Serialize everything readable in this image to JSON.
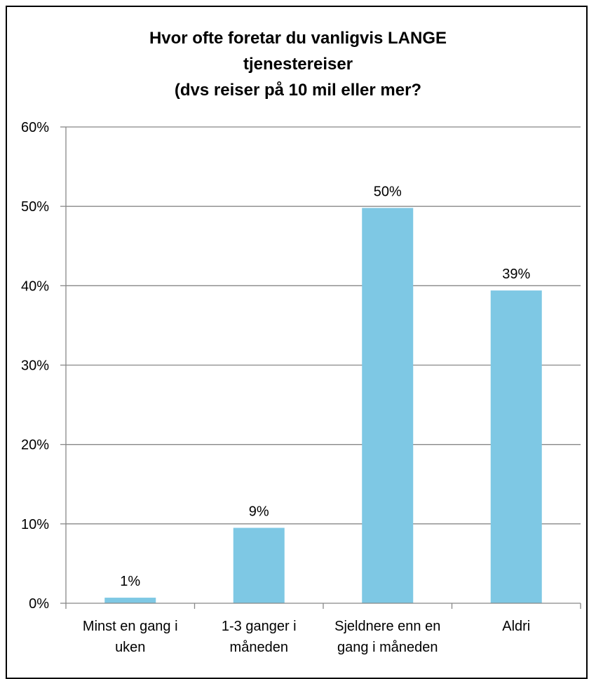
{
  "chart_data": {
    "type": "bar",
    "title_lines": [
      "Hvor ofte foretar du vanligvis LANGE",
      "tjenestereiser",
      "(dvs reiser på 10 mil eller mer?"
    ],
    "categories": [
      [
        "Minst en gang i",
        "uken"
      ],
      [
        "1-3 ganger i",
        "måneden"
      ],
      [
        "Sjeldnere enn en",
        "gang i måneden"
      ],
      [
        "Aldri"
      ]
    ],
    "values": [
      0.7,
      9.5,
      49.8,
      39.4
    ],
    "data_labels": [
      "1%",
      "9%",
      "50%",
      "39%"
    ],
    "y_ticks": [
      "0%",
      "10%",
      "20%",
      "30%",
      "40%",
      "50%",
      "60%"
    ],
    "ylim": [
      0,
      60
    ],
    "grid": true,
    "legend": "none",
    "bar_color": "#7EC8E4",
    "grid_color": "#888888"
  }
}
